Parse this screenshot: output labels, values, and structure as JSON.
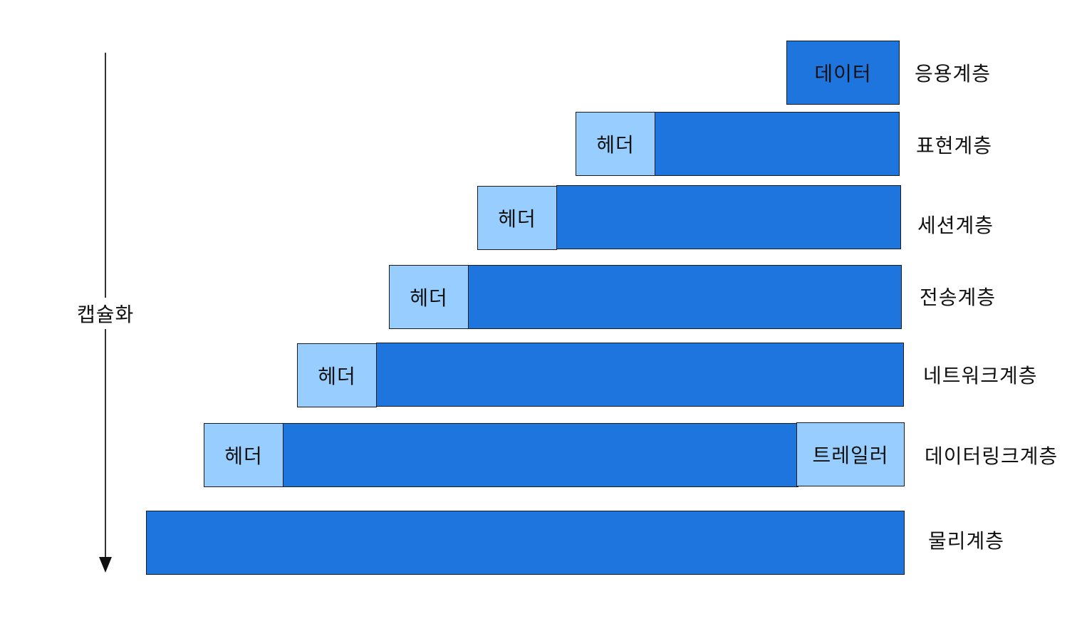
{
  "axis": {
    "label": "캡슐화"
  },
  "layers": {
    "application": {
      "label": "응용계층",
      "data_box": "데이터"
    },
    "presentation": {
      "label": "표현계층",
      "header": "헤더"
    },
    "session": {
      "label": "세션계층",
      "header": "헤더"
    },
    "transport": {
      "label": "전송계층",
      "header": "헤더"
    },
    "network": {
      "label": "네트워크계층",
      "header": "헤더"
    },
    "datalink": {
      "label": "데이터링크계층",
      "header": "헤더",
      "trailer": "트레일러"
    },
    "physical": {
      "label": "물리계층"
    }
  },
  "colors": {
    "payload": "#1f75de",
    "header": "#97cdff",
    "border": "#1b1b1b"
  }
}
